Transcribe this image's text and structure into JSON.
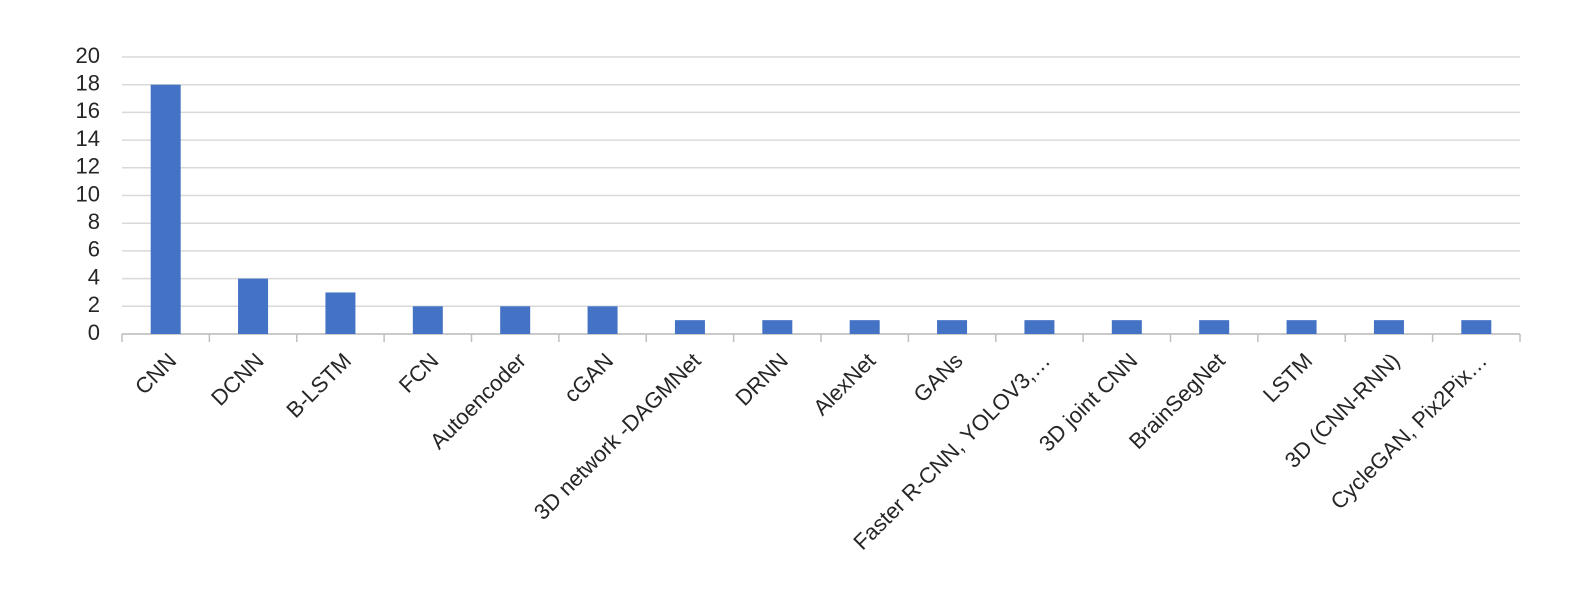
{
  "chart_data": {
    "type": "bar",
    "categories": [
      "CNN",
      "DCNN",
      "B-LSTM",
      "FCN",
      "Autoencoder",
      "cGAN",
      "3D network -DAGMNet",
      "DRNN",
      "AlexNet",
      "GANs",
      "Faster R-CNN, YOLOV3,…",
      "3D joint CNN",
      "BrainSegNet",
      "LSTM",
      "3D (CNN-RNN)",
      "CycleGAN, Pix2Pix…"
    ],
    "values": [
      18,
      4,
      3,
      2,
      2,
      2,
      1,
      1,
      1,
      1,
      1,
      1,
      1,
      1,
      1,
      1
    ],
    "color": "#4472c4",
    "ylim": [
      0,
      20
    ],
    "yticks": [
      0,
      2,
      4,
      6,
      8,
      10,
      12,
      14,
      16,
      18,
      20
    ],
    "grid": true
  }
}
